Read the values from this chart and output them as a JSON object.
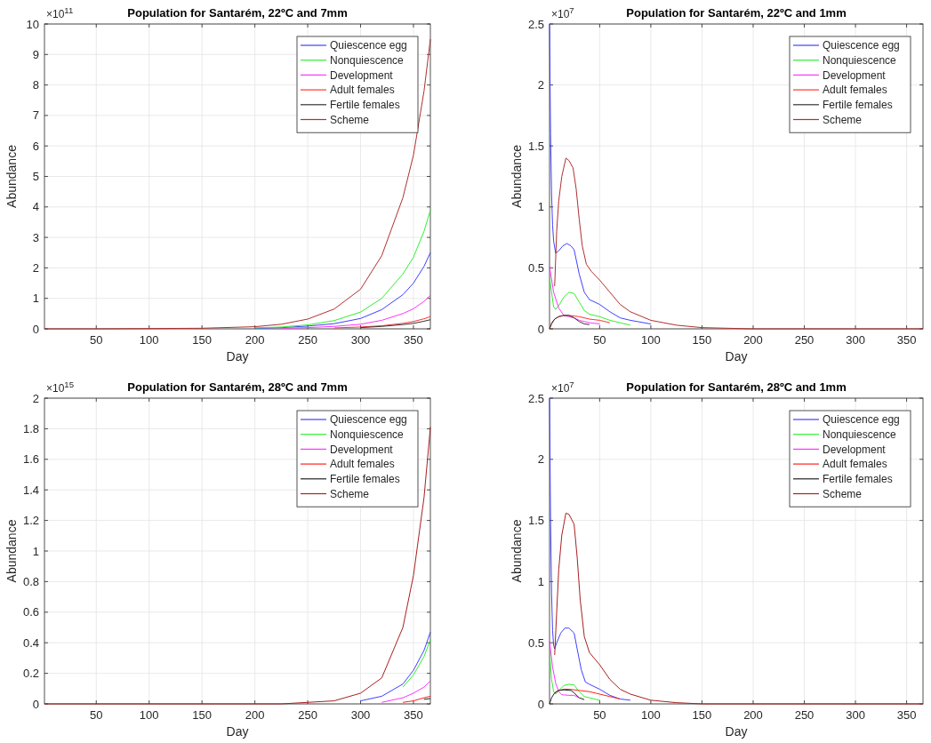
{
  "chart_data": [
    {
      "type": "line",
      "title": "Population for Santarém, 22ºC and 7mm",
      "xlabel": "Day",
      "ylabel": "Abundance",
      "annotations": [
        "×10$^{11}$"
      ],
      "xlim": [
        1,
        366
      ],
      "xticks": [
        50,
        100,
        150,
        200,
        250,
        300,
        350
      ],
      "ylim": [
        0,
        10
      ],
      "yticks": [
        0,
        1,
        2,
        3,
        4,
        5,
        6,
        7,
        8,
        9,
        10
      ],
      "grid": true,
      "legend": "top right",
      "x": [
        1,
        50,
        100,
        150,
        200,
        225,
        250,
        275,
        300,
        320,
        340,
        350,
        360,
        366
      ],
      "series": [
        {
          "name": "Quiescence egg",
          "color": "#4040ff",
          "values": [
            null,
            null,
            null,
            null,
            0.02,
            0.04,
            0.09,
            0.17,
            0.34,
            0.63,
            1.12,
            1.5,
            2.05,
            2.5
          ]
        },
        {
          "name": "Nonquiescence",
          "color": "#33ee33",
          "values": [
            null,
            null,
            null,
            null,
            0.03,
            0.06,
            0.13,
            0.27,
            0.55,
            1.0,
            1.8,
            2.35,
            3.2,
            3.9
          ]
        },
        {
          "name": "Development",
          "color": "#ff33ff",
          "values": [
            null,
            null,
            null,
            null,
            null,
            0.02,
            0.04,
            0.08,
            0.15,
            0.28,
            0.5,
            0.66,
            0.9,
            1.1
          ]
        },
        {
          "name": "Adult females",
          "color": "#ff3333",
          "values": [
            null,
            null,
            null,
            null,
            null,
            null,
            null,
            0.03,
            0.06,
            0.1,
            0.18,
            0.24,
            0.33,
            0.4
          ]
        },
        {
          "name": "Fertile females",
          "color": "#333333",
          "values": [
            null,
            null,
            null,
            null,
            null,
            null,
            null,
            null,
            0.04,
            0.08,
            0.14,
            0.18,
            0.25,
            0.3
          ]
        },
        {
          "name": "Scheme",
          "color": "#b03030",
          "values": [
            0,
            0,
            0.01,
            0.02,
            0.07,
            0.15,
            0.32,
            0.65,
            1.3,
            2.4,
            4.3,
            5.7,
            7.8,
            9.5
          ]
        }
      ]
    },
    {
      "type": "line",
      "title": "Population for Santarém, 22ºC and 1mm",
      "xlabel": "Day",
      "ylabel": "Abundance",
      "annotations": [
        "×10$^{7}$"
      ],
      "xlim": [
        1,
        366
      ],
      "xticks": [
        50,
        100,
        150,
        200,
        250,
        300,
        350
      ],
      "ylim": [
        0,
        2.5
      ],
      "yticks": [
        0,
        0.5,
        1,
        1.5,
        2,
        2.5
      ],
      "grid": true,
      "legend": "top right",
      "series": [
        {
          "name": "Quiescence egg",
          "color": "#4040ff",
          "x": [
            1,
            2,
            3,
            4,
            5,
            7,
            10,
            14,
            18,
            22,
            25,
            30,
            35,
            40,
            50,
            60,
            70,
            80,
            100
          ],
          "values": [
            2.5,
            1.6,
            1.1,
            0.85,
            0.72,
            0.62,
            0.64,
            0.68,
            0.7,
            0.68,
            0.65,
            0.45,
            0.3,
            0.24,
            0.2,
            0.14,
            0.09,
            0.07,
            0.04
          ]
        },
        {
          "name": "Nonquiescence",
          "color": "#33ee33",
          "x": [
            1,
            3,
            5,
            7,
            10,
            15,
            20,
            25,
            30,
            35,
            40,
            50,
            60,
            70,
            80
          ],
          "values": [
            0.43,
            0.3,
            0.18,
            0.16,
            0.19,
            0.26,
            0.3,
            0.29,
            0.22,
            0.15,
            0.12,
            0.1,
            0.07,
            0.05,
            0.03
          ]
        },
        {
          "name": "Development",
          "color": "#ff33ff",
          "x": [
            1,
            5,
            10,
            15,
            20,
            25,
            30,
            40,
            50
          ],
          "values": [
            0.51,
            0.3,
            0.17,
            0.11,
            0.1,
            0.09,
            0.07,
            0.05,
            0.04
          ]
        },
        {
          "name": "Adult females",
          "color": "#ff3333",
          "x": [
            1,
            3,
            6,
            10,
            15,
            20,
            30,
            40,
            50,
            60
          ],
          "values": [
            0,
            0.05,
            0.08,
            0.1,
            0.11,
            0.11,
            0.1,
            0.08,
            0.07,
            0.05
          ]
        },
        {
          "name": "Fertile females",
          "color": "#333333",
          "x": [
            1,
            3,
            6,
            10,
            15,
            20,
            25,
            30,
            35,
            40
          ],
          "values": [
            0,
            0.04,
            0.08,
            0.1,
            0.11,
            0.11,
            0.09,
            0.06,
            0.04,
            0.035
          ]
        },
        {
          "name": "Scheme",
          "color": "#b03030",
          "x": [
            6,
            8,
            10,
            13,
            17,
            20,
            24,
            27,
            30,
            33,
            37,
            42,
            50,
            60,
            70,
            80,
            100,
            125,
            150,
            200,
            366
          ],
          "values": [
            0.35,
            0.8,
            1.05,
            1.25,
            1.4,
            1.38,
            1.32,
            1.15,
            0.9,
            0.68,
            0.53,
            0.47,
            0.4,
            0.3,
            0.2,
            0.14,
            0.07,
            0.03,
            0.01,
            0,
            0
          ]
        }
      ]
    },
    {
      "type": "line",
      "title": "Population for Santarém, 28ºC and 7mm",
      "xlabel": "Day",
      "ylabel": "Abundance",
      "annotations": [
        "×10$^{15}$"
      ],
      "xlim": [
        1,
        366
      ],
      "xticks": [
        50,
        100,
        150,
        200,
        250,
        300,
        350
      ],
      "ylim": [
        0,
        2
      ],
      "yticks": [
        0,
        0.2,
        0.4,
        0.6,
        0.8,
        1,
        1.2,
        1.4,
        1.6,
        1.8,
        2
      ],
      "grid": true,
      "legend": "top right",
      "x": [
        300,
        320,
        340,
        350,
        360,
        366
      ],
      "series": [
        {
          "name": "Quiescence egg",
          "color": "#4040ff",
          "values": [
            0.02,
            0.05,
            0.13,
            0.22,
            0.35,
            0.47
          ]
        },
        {
          "name": "Nonquiescence",
          "color": "#33ee33",
          "values": [
            null,
            null,
            0.11,
            0.19,
            0.31,
            0.42
          ]
        },
        {
          "name": "Development",
          "color": "#ff33ff",
          "values": [
            null,
            0.01,
            0.04,
            0.07,
            0.11,
            0.15
          ]
        },
        {
          "name": "Adult females",
          "color": "#ff2020",
          "values": [
            null,
            null,
            0.01,
            0.02,
            0.04,
            0.05
          ]
        },
        {
          "name": "Fertile females",
          "color": "#202020",
          "values": [
            null,
            null,
            null,
            null,
            0.03,
            0.035
          ]
        },
        {
          "name": "Scheme",
          "color": "#a82020",
          "x": [
            1,
            225,
            250,
            275,
            300,
            320,
            340,
            350,
            360,
            366
          ],
          "values": [
            0,
            0,
            0.01,
            0.02,
            0.07,
            0.17,
            0.5,
            0.84,
            1.35,
            1.81
          ]
        }
      ]
    },
    {
      "type": "line",
      "title": "Population for Santarém, 28ºC and 1mm",
      "xlabel": "Day",
      "ylabel": "Abundance",
      "annotations": [
        "×10$^{7}$"
      ],
      "xlim": [
        1,
        366
      ],
      "xticks": [
        50,
        100,
        150,
        200,
        250,
        300,
        350
      ],
      "ylim": [
        0,
        2.5
      ],
      "yticks": [
        0,
        0.5,
        1,
        1.5,
        2,
        2.5
      ],
      "grid": true,
      "legend": "top right",
      "series": [
        {
          "name": "Quiescence egg",
          "color": "#4040ff",
          "x": [
            1,
            2,
            3,
            4,
            5,
            6,
            8,
            12,
            16,
            20,
            25,
            28,
            32,
            36,
            40,
            50,
            60,
            70,
            80
          ],
          "values": [
            2.5,
            1.5,
            0.9,
            0.6,
            0.48,
            0.45,
            0.5,
            0.58,
            0.62,
            0.62,
            0.58,
            0.45,
            0.28,
            0.18,
            0.16,
            0.12,
            0.07,
            0.04,
            0.03
          ]
        },
        {
          "name": "Nonquiescence",
          "color": "#33ee33",
          "x": [
            1,
            3,
            5,
            7,
            10,
            15,
            20,
            25,
            30,
            35,
            40,
            50
          ],
          "values": [
            0.43,
            0.2,
            0.1,
            0.08,
            0.11,
            0.15,
            0.16,
            0.155,
            0.1,
            0.06,
            0.05,
            0.03
          ]
        },
        {
          "name": "Development",
          "color": "#ff33ff",
          "x": [
            1,
            4,
            7,
            10,
            13,
            20,
            25,
            30
          ],
          "values": [
            0.51,
            0.3,
            0.17,
            0.1,
            0.075,
            0.07,
            0.07,
            0.05
          ]
        },
        {
          "name": "Adult females",
          "color": "#ff2020",
          "x": [
            6,
            10,
            15,
            20,
            30,
            40,
            50,
            60,
            70
          ],
          "values": [
            0.09,
            0.11,
            0.12,
            0.12,
            0.11,
            0.1,
            0.08,
            0.06,
            0.04
          ]
        },
        {
          "name": "Fertile females",
          "color": "#202020",
          "x": [
            1,
            3,
            6,
            10,
            15,
            22,
            25,
            30,
            35
          ],
          "values": [
            0,
            0.05,
            0.09,
            0.11,
            0.115,
            0.11,
            0.09,
            0.05,
            0.035
          ]
        },
        {
          "name": "Scheme",
          "color": "#a82020",
          "x": [
            6,
            8,
            10,
            13,
            17,
            20,
            25,
            28,
            31,
            35,
            40,
            50,
            60,
            70,
            80,
            100,
            125,
            150,
            200,
            366
          ],
          "values": [
            0.4,
            0.75,
            1.1,
            1.38,
            1.56,
            1.55,
            1.47,
            1.2,
            0.85,
            0.55,
            0.42,
            0.32,
            0.2,
            0.12,
            0.08,
            0.03,
            0.01,
            0,
            0,
            0
          ]
        }
      ]
    }
  ]
}
